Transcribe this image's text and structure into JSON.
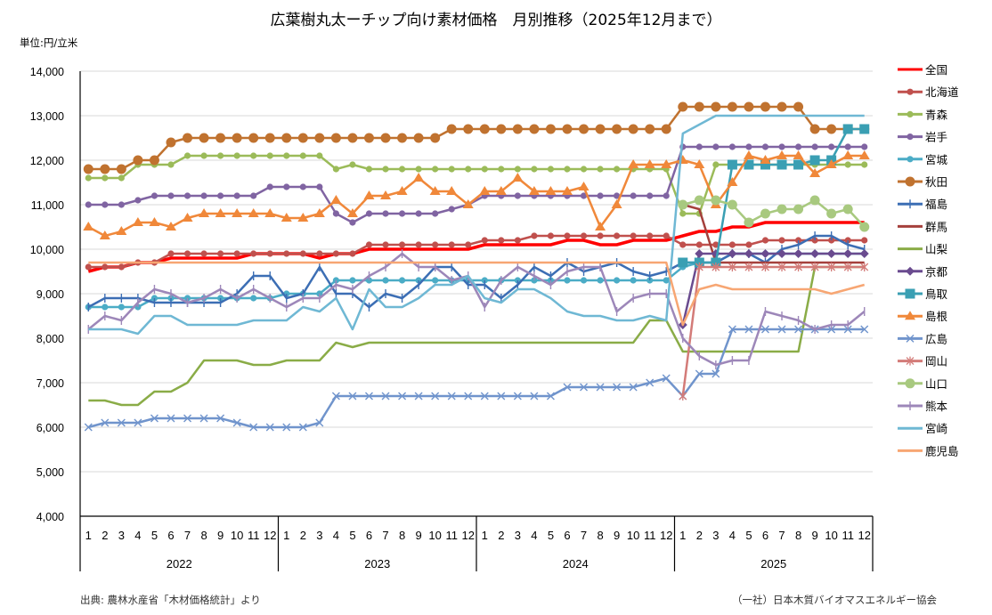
{
  "chart_data": {
    "type": "line",
    "title": "広葉樹丸太ーチップ向け素材価格　月別推移（2025年12月まで）",
    "unit_label": "単位:円/立米",
    "ylabel": "円/立米",
    "xlabel": "",
    "ylim": [
      4000,
      14000
    ],
    "yticks": [
      4000,
      5000,
      6000,
      7000,
      8000,
      9000,
      10000,
      11000,
      12000,
      13000,
      14000
    ],
    "ytick_labels": [
      "4,000",
      "5,000",
      "6,000",
      "7,000",
      "8,000",
      "9,000",
      "10,000",
      "11,000",
      "12,000",
      "13,000",
      "14,000"
    ],
    "grid": true,
    "legend_position": "right",
    "years": [
      "2022",
      "2023",
      "2024",
      "2025"
    ],
    "months": [
      "1",
      "2",
      "3",
      "4",
      "5",
      "6",
      "7",
      "8",
      "9",
      "10",
      "11",
      "12"
    ],
    "source": "出典: 農林水産省「木材価格統計」より",
    "credit": "（一社）日本木質バイオマスエネルギー協会",
    "series": [
      {
        "name": "全国",
        "color": "#ff0000",
        "marker": "none",
        "width": 3.5,
        "values": [
          9500,
          9600,
          9600,
          9700,
          9700,
          9800,
          9800,
          9800,
          9800,
          9800,
          9900,
          9900,
          9900,
          9900,
          9800,
          9900,
          9900,
          10000,
          10000,
          10000,
          10000,
          10000,
          10000,
          10000,
          10100,
          10100,
          10100,
          10100,
          10100,
          10200,
          10200,
          10100,
          10100,
          10200,
          10200,
          10200,
          10300,
          10400,
          10400,
          10500,
          10500,
          10600,
          10600,
          10600,
          10600,
          10600,
          10600,
          10600
        ]
      },
      {
        "name": "北海道",
        "color": "#c0504d",
        "marker": "circle",
        "width": 2.5,
        "values": [
          9600,
          9600,
          9600,
          9700,
          9700,
          9900,
          9900,
          9900,
          9900,
          9900,
          9900,
          9900,
          9900,
          9900,
          9900,
          9900,
          9900,
          10100,
          10100,
          10100,
          10100,
          10100,
          10100,
          10100,
          10200,
          10200,
          10200,
          10300,
          10300,
          10300,
          10300,
          10300,
          10300,
          10300,
          10300,
          10300,
          10100,
          10100,
          10100,
          10100,
          10100,
          10200,
          10200,
          10200,
          10200,
          10200,
          10200,
          10200
        ]
      },
      {
        "name": "青森",
        "color": "#9bbb59",
        "marker": "circle",
        "width": 2.5,
        "values": [
          11600,
          11600,
          11600,
          11900,
          11900,
          11900,
          12100,
          12100,
          12100,
          12100,
          12100,
          12100,
          12100,
          12100,
          12100,
          11800,
          11900,
          11800,
          11800,
          11800,
          11800,
          11800,
          11800,
          11800,
          11800,
          11800,
          11800,
          11800,
          11800,
          11800,
          11800,
          11800,
          11800,
          11800,
          11800,
          11800,
          10800,
          10800,
          11900,
          11900,
          11900,
          11900,
          11900,
          11900,
          11900,
          11900,
          11900,
          11900
        ]
      },
      {
        "name": "岩手",
        "color": "#8064a2",
        "marker": "circle",
        "width": 2.5,
        "values": [
          11000,
          11000,
          11000,
          11100,
          11200,
          11200,
          11200,
          11200,
          11200,
          11200,
          11200,
          11400,
          11400,
          11400,
          11400,
          10800,
          10600,
          10800,
          10800,
          10800,
          10800,
          10800,
          10900,
          11000,
          11200,
          11200,
          11200,
          11200,
          11200,
          11200,
          11200,
          11200,
          11200,
          11200,
          11200,
          11200,
          12300,
          12300,
          12300,
          12300,
          12300,
          12300,
          12300,
          12300,
          12300,
          12300,
          12300,
          12300
        ]
      },
      {
        "name": "宮城",
        "color": "#4bacc6",
        "marker": "circle",
        "width": 2.5,
        "values": [
          8700,
          8700,
          8700,
          8700,
          8900,
          8900,
          8900,
          8900,
          8900,
          8900,
          8900,
          8900,
          9000,
          9000,
          9000,
          9300,
          9300,
          9300,
          9300,
          9300,
          9300,
          9300,
          9300,
          9300,
          9300,
          9300,
          9300,
          9300,
          9300,
          9300,
          9300,
          9300,
          9300,
          9300,
          9300,
          9300,
          9600,
          9700,
          9700,
          9900,
          9900,
          9900,
          9900,
          9900,
          9900,
          9900,
          9900,
          9900
        ]
      },
      {
        "name": "秋田",
        "color": "#c0722f",
        "marker": "circle-lg",
        "width": 2.5,
        "values": [
          11800,
          11800,
          11800,
          12000,
          12000,
          12400,
          12500,
          12500,
          12500,
          12500,
          12500,
          12500,
          12500,
          12500,
          12500,
          12500,
          12500,
          12500,
          12500,
          12500,
          12500,
          12500,
          12700,
          12700,
          12700,
          12700,
          12700,
          12700,
          12700,
          12700,
          12700,
          12700,
          12700,
          12700,
          12700,
          12700,
          13200,
          13200,
          13200,
          13200,
          13200,
          13200,
          13200,
          13200,
          12700,
          12700,
          12700,
          12700
        ]
      },
      {
        "name": "福島",
        "color": "#3c6eb4",
        "marker": "plus",
        "width": 2.5,
        "values": [
          8700,
          8900,
          8900,
          8900,
          8800,
          8800,
          8800,
          8800,
          8800,
          9000,
          9400,
          9400,
          8900,
          9000,
          9600,
          9000,
          9000,
          8700,
          9000,
          8900,
          9200,
          9600,
          9600,
          9200,
          9200,
          8900,
          9200,
          9600,
          9400,
          9700,
          9500,
          9600,
          9700,
          9500,
          9400,
          9500,
          9700,
          9700,
          9700,
          9900,
          9900,
          9700,
          10000,
          10100,
          10300,
          10300,
          10100,
          10000
        ]
      },
      {
        "name": "群馬",
        "color": "#a5403c",
        "marker": "none",
        "width": 2.5,
        "values": [
          null,
          null,
          null,
          null,
          null,
          null,
          null,
          null,
          null,
          null,
          null,
          null,
          null,
          null,
          null,
          null,
          null,
          null,
          null,
          null,
          null,
          null,
          null,
          null,
          null,
          null,
          null,
          null,
          null,
          null,
          null,
          null,
          null,
          null,
          null,
          null,
          11000,
          10900,
          9700,
          9700,
          9700,
          9700,
          9700,
          9700,
          9700,
          9700,
          9700,
          9700
        ]
      },
      {
        "name": "山梨",
        "color": "#8aac47",
        "marker": "none",
        "width": 2.5,
        "values": [
          6600,
          6600,
          6500,
          6500,
          6800,
          6800,
          7000,
          7500,
          7500,
          7500,
          7400,
          7400,
          7500,
          7500,
          7500,
          7900,
          7800,
          7900,
          7900,
          7900,
          7900,
          7900,
          7900,
          7900,
          7900,
          7900,
          7900,
          7900,
          7900,
          7900,
          7900,
          7900,
          7900,
          7900,
          8400,
          8400,
          7700,
          7700,
          7700,
          7700,
          7700,
          7700,
          7700,
          7700,
          9600,
          9600,
          9600,
          9600
        ]
      },
      {
        "name": "京都",
        "color": "#6a4b8f",
        "marker": "diamond",
        "width": 2.5,
        "values": [
          null,
          null,
          null,
          null,
          null,
          null,
          null,
          null,
          null,
          null,
          null,
          null,
          null,
          null,
          null,
          null,
          null,
          null,
          null,
          null,
          null,
          null,
          null,
          null,
          null,
          null,
          null,
          null,
          null,
          null,
          null,
          null,
          null,
          null,
          null,
          null,
          8300,
          9900,
          9900,
          9900,
          9900,
          9900,
          9900,
          9900,
          9900,
          9900,
          9900,
          9900
        ]
      },
      {
        "name": "鳥取",
        "color": "#3a9fb3",
        "marker": "square",
        "width": 2.5,
        "values": [
          null,
          null,
          null,
          null,
          null,
          null,
          null,
          null,
          null,
          null,
          null,
          null,
          null,
          null,
          null,
          null,
          null,
          null,
          null,
          null,
          null,
          null,
          null,
          null,
          null,
          null,
          null,
          null,
          null,
          null,
          null,
          null,
          null,
          null,
          null,
          null,
          9700,
          9700,
          9700,
          11900,
          11900,
          11900,
          11900,
          11900,
          12000,
          12000,
          12700,
          12700
        ]
      },
      {
        "name": "島根",
        "color": "#f0883a",
        "marker": "triangle",
        "width": 2.5,
        "values": [
          10500,
          10300,
          10400,
          10600,
          10600,
          10500,
          10700,
          10800,
          10800,
          10800,
          10800,
          10800,
          10700,
          10700,
          10800,
          11100,
          10800,
          11200,
          11200,
          11300,
          11600,
          11300,
          11300,
          11000,
          11300,
          11300,
          11600,
          11300,
          11300,
          11300,
          11400,
          10500,
          11000,
          11900,
          11900,
          11900,
          12000,
          11900,
          11000,
          11500,
          12100,
          12000,
          12100,
          12100,
          11700,
          11900,
          12100,
          12100
        ]
      },
      {
        "name": "広島",
        "color": "#7094cc",
        "marker": "x",
        "width": 2.5,
        "values": [
          6000,
          6100,
          6100,
          6100,
          6200,
          6200,
          6200,
          6200,
          6200,
          6100,
          6000,
          6000,
          6000,
          6000,
          6100,
          6700,
          6700,
          6700,
          6700,
          6700,
          6700,
          6700,
          6700,
          6700,
          6700,
          6700,
          6700,
          6700,
          6700,
          6900,
          6900,
          6900,
          6900,
          6900,
          7000,
          7100,
          6700,
          7200,
          7200,
          8200,
          8200,
          8200,
          8200,
          8200,
          8200,
          8200,
          8200,
          8200
        ]
      },
      {
        "name": "岡山",
        "color": "#d37b78",
        "marker": "asterisk",
        "width": 2.5,
        "values": [
          null,
          null,
          null,
          null,
          null,
          null,
          null,
          null,
          null,
          null,
          null,
          null,
          null,
          null,
          null,
          null,
          null,
          null,
          null,
          null,
          null,
          null,
          null,
          null,
          null,
          null,
          null,
          null,
          null,
          null,
          null,
          null,
          null,
          null,
          null,
          null,
          6700,
          9600,
          9600,
          9600,
          9600,
          9600,
          9600,
          9600,
          9600,
          9600,
          9600,
          9600
        ]
      },
      {
        "name": "山口",
        "color": "#a8c97f",
        "marker": "circle-lg",
        "width": 2.5,
        "values": [
          null,
          null,
          null,
          null,
          null,
          null,
          null,
          null,
          null,
          null,
          null,
          null,
          null,
          null,
          null,
          null,
          null,
          null,
          null,
          null,
          null,
          null,
          null,
          null,
          null,
          null,
          null,
          null,
          null,
          null,
          null,
          null,
          null,
          null,
          null,
          null,
          11000,
          11100,
          11100,
          11000,
          10600,
          10800,
          10900,
          10900,
          11100,
          10800,
          10900,
          10500
        ]
      },
      {
        "name": "熊本",
        "color": "#9d87b9",
        "marker": "plus",
        "width": 2.5,
        "values": [
          8200,
          8500,
          8400,
          8800,
          9100,
          9000,
          8800,
          8900,
          9100,
          8900,
          9100,
          8900,
          8700,
          8900,
          8900,
          9200,
          9100,
          9400,
          9600,
          9900,
          9600,
          9600,
          9300,
          9400,
          8700,
          9300,
          9600,
          9400,
          9200,
          9500,
          9600,
          9600,
          8600,
          8900,
          9000,
          9000,
          8000,
          7600,
          7400,
          7500,
          7500,
          8600,
          8500,
          8400,
          8200,
          8300,
          8300,
          8600
        ]
      },
      {
        "name": "宮崎",
        "color": "#6fb8d4",
        "marker": "none",
        "width": 2.5,
        "values": [
          8200,
          8200,
          8200,
          8100,
          8500,
          8500,
          8300,
          8300,
          8300,
          8300,
          8400,
          8400,
          8400,
          8700,
          8600,
          8900,
          8200,
          9100,
          8700,
          8700,
          8900,
          9200,
          9200,
          9400,
          8900,
          8800,
          9100,
          9100,
          8900,
          8600,
          8500,
          8500,
          8400,
          8400,
          8500,
          8400,
          12600,
          12800,
          13000,
          13000,
          13000,
          13000,
          13000,
          13000,
          13000,
          13000,
          13000,
          13000
        ]
      },
      {
        "name": "鹿児島",
        "color": "#f7a673",
        "marker": "none",
        "width": 2.5,
        "values": [
          9700,
          9700,
          9700,
          9700,
          9700,
          9700,
          9700,
          9700,
          9700,
          9700,
          9700,
          9700,
          9700,
          9700,
          9700,
          9700,
          9700,
          9700,
          9700,
          9700,
          9700,
          9700,
          9700,
          9700,
          9700,
          9700,
          9700,
          9700,
          9700,
          9700,
          9700,
          9700,
          9700,
          9700,
          9700,
          9700,
          8300,
          9100,
          9200,
          9100,
          9100,
          9100,
          9100,
          9100,
          9100,
          9000,
          9100,
          9200
        ]
      }
    ]
  }
}
